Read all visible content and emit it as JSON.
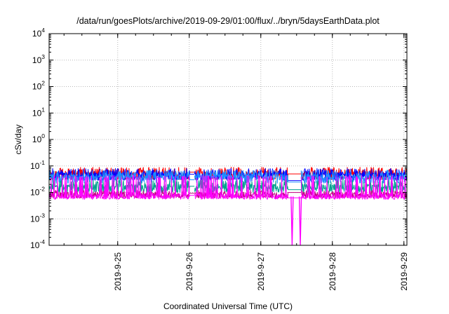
{
  "chart_data": {
    "type": "line",
    "title": "/data/run/goesPlots/archive/2019-09-29/01:00/flux/../bryn/5daysEarthData.plot",
    "xlabel": "Coordinated Universal Time (UTC)",
    "ylabel": "cSv/day",
    "y_scale": "log",
    "ylim": [
      0.0001,
      10000
    ],
    "y_ticks": [
      {
        "base": "10",
        "exp": "-4",
        "value": 0.0001
      },
      {
        "base": "10",
        "exp": "-3",
        "value": 0.001
      },
      {
        "base": "10",
        "exp": "-2",
        "value": 0.01
      },
      {
        "base": "10",
        "exp": "-1",
        "value": 0.1
      },
      {
        "base": "10",
        "exp": "0",
        "value": 1
      },
      {
        "base": "10",
        "exp": "1",
        "value": 10
      },
      {
        "base": "10",
        "exp": "2",
        "value": 100
      },
      {
        "base": "10",
        "exp": "3",
        "value": 1000
      },
      {
        "base": "10",
        "exp": "4",
        "value": 10000
      }
    ],
    "xlim": [
      "2019-09-24T01:00",
      "2019-09-29T01:00"
    ],
    "x_ticks": [
      "2019-9-25",
      "2019-9-26",
      "2019-9-27",
      "2019-9-28",
      "2019-9-29"
    ],
    "grid": true,
    "legend": "none",
    "gaps": [
      {
        "from": "2019-09-26T00:15",
        "to": "2019-09-26T01:45"
      },
      {
        "from": "2019-09-27T09:15",
        "to": "2019-09-27T13:30"
      }
    ],
    "series": [
      {
        "color": "#ff0000",
        "base": 0.05,
        "spike_max": 0.09,
        "dip_min": 0.03
      },
      {
        "color": "#0000ff",
        "base": 0.045,
        "spike_max": 0.08,
        "dip_min": 0.028
      },
      {
        "color": "#1e90ff",
        "base": 0.038,
        "spike_max": 0.07,
        "dip_min": 0.022
      },
      {
        "color": "#00a090",
        "base": 0.016,
        "spike_max": 0.03,
        "dip_min": 0.01
      },
      {
        "color": "#c0007f",
        "base": 0.008,
        "spike_max": 0.012,
        "dip_min": 0.006
      },
      {
        "color": "#ff00ff",
        "base": 0.007,
        "spike_max": 0.045,
        "dip_min": 0.0055
      }
    ],
    "notable_dips": [
      {
        "x": "2019-09-27T10:30",
        "y": 0.0001
      },
      {
        "x": "2019-09-27T13:15",
        "y": 0.0001
      }
    ]
  }
}
